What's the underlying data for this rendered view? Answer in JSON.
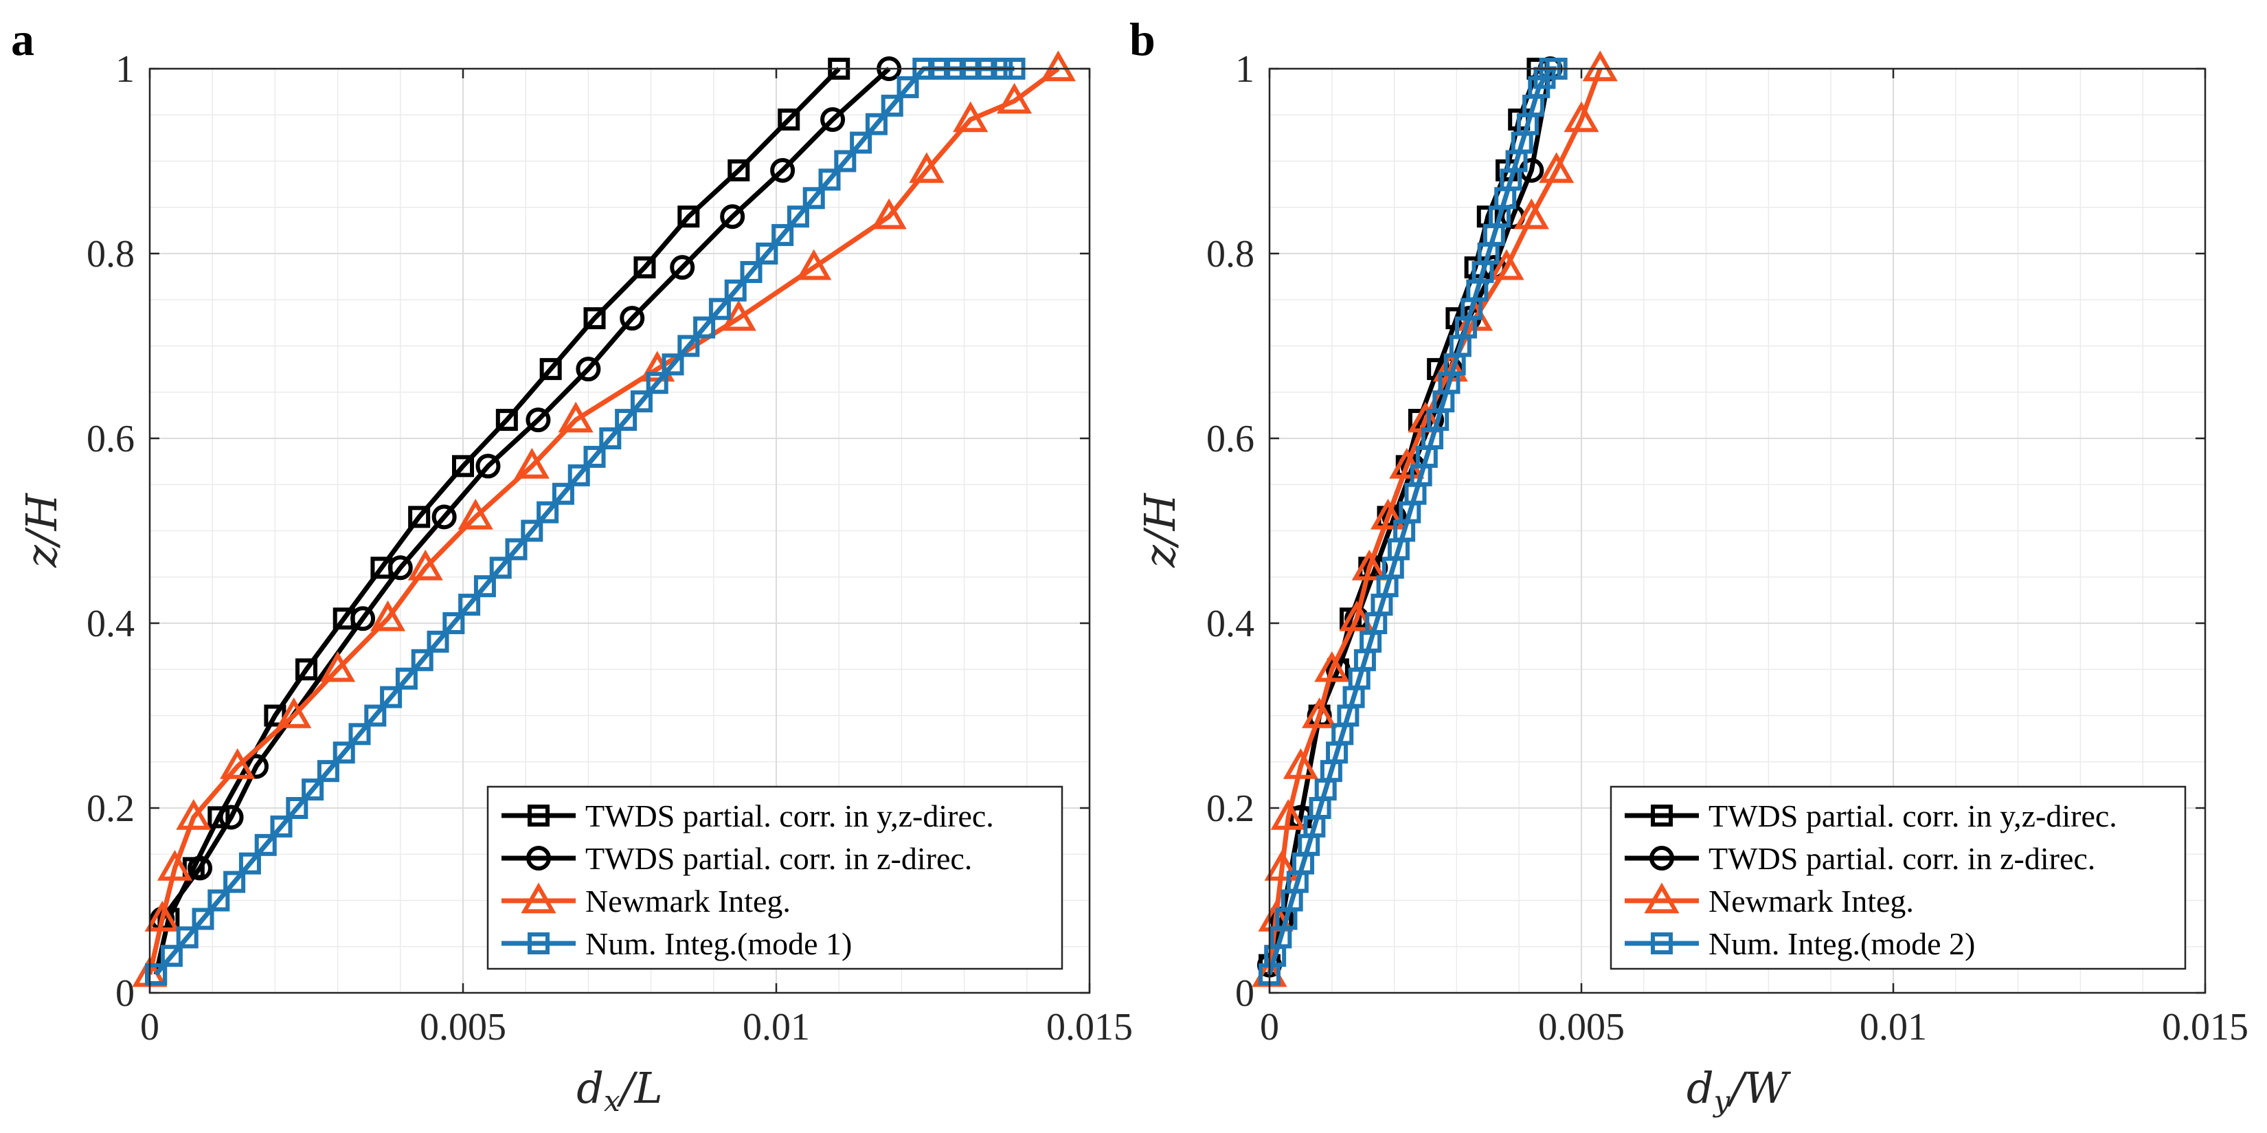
{
  "chart_data": [
    {
      "type": "line",
      "panel_label": "a",
      "xlabel_main": "d",
      "xlabel_sub": "x",
      "xlabel_den": "/L",
      "ylabel": "z/H",
      "xlim": [
        0,
        0.015
      ],
      "ylim": [
        0,
        1
      ],
      "xticks": [
        0,
        0.005,
        0.01,
        0.015
      ],
      "xtick_labels": [
        "0",
        "0.005",
        "0.01",
        "0.015"
      ],
      "yticks": [
        0,
        0.2,
        0.4,
        0.6,
        0.8,
        1
      ],
      "ytick_labels": [
        "0",
        "0.2",
        "0.4",
        "0.6",
        "0.8",
        "1"
      ],
      "grid": true,
      "legend_position": "bottom-right",
      "series": [
        {
          "name": "TWDS partial. corr. in y,z-direc.",
          "color": "#000000",
          "marker": "square",
          "x": [
            0.0001,
            0.0003,
            0.0007,
            0.0011,
            0.002,
            0.0025,
            0.0031,
            0.0037,
            0.0043,
            0.005,
            0.0057,
            0.0064,
            0.0071,
            0.0079,
            0.0086,
            0.0094,
            0.0102,
            0.011
          ],
          "y": [
            0.02,
            0.08,
            0.135,
            0.19,
            0.3,
            0.35,
            0.405,
            0.46,
            0.515,
            0.57,
            0.62,
            0.675,
            0.73,
            0.785,
            0.84,
            0.89,
            0.945,
            1.0
          ]
        },
        {
          "name": "TWDS partial. corr. in z-direc.",
          "color": "#000000",
          "marker": "circle",
          "x": [
            0.0002,
            0.0008,
            0.0013,
            0.0017,
            0.0034,
            0.004,
            0.0047,
            0.0054,
            0.0062,
            0.007,
            0.0077,
            0.0085,
            0.0093,
            0.0101,
            0.0109,
            0.0118
          ],
          "y": [
            0.08,
            0.135,
            0.19,
            0.245,
            0.405,
            0.46,
            0.515,
            0.57,
            0.62,
            0.675,
            0.73,
            0.785,
            0.84,
            0.89,
            0.945,
            1.0
          ]
        },
        {
          "name": "Newmark Integ.",
          "color": "#f4511e",
          "marker": "triangle",
          "x": [
            0.0,
            0.0002,
            0.0004,
            0.0007,
            0.0014,
            0.0023,
            0.003,
            0.0038,
            0.0044,
            0.0052,
            0.0061,
            0.0068,
            0.0081,
            0.0094,
            0.0106,
            0.0118,
            0.0124,
            0.0131,
            0.0138,
            0.0145
          ],
          "y": [
            0.02,
            0.08,
            0.135,
            0.19,
            0.245,
            0.3,
            0.35,
            0.405,
            0.46,
            0.515,
            0.57,
            0.62,
            0.675,
            0.73,
            0.785,
            0.84,
            0.89,
            0.945,
            0.965,
            1.0
          ]
        },
        {
          "name": "Num. Integ.(mode 1)",
          "color": "#1f77b4",
          "marker": "square",
          "x": [
            0.0001,
            0.00035,
            0.0006,
            0.00085,
            0.0011,
            0.00135,
            0.0016,
            0.00185,
            0.0021,
            0.00235,
            0.0026,
            0.00285,
            0.0031,
            0.00335,
            0.0036,
            0.00385,
            0.0041,
            0.00435,
            0.0046,
            0.00485,
            0.0051,
            0.00535,
            0.0056,
            0.00585,
            0.0061,
            0.00635,
            0.0066,
            0.00685,
            0.0071,
            0.00735,
            0.0076,
            0.00785,
            0.0081,
            0.00835,
            0.0086,
            0.00885,
            0.0091,
            0.00935,
            0.0096,
            0.00985,
            0.0101,
            0.01035,
            0.0106,
            0.01085,
            0.0111,
            0.01135,
            0.0116,
            0.01185,
            0.0121,
            0.01235,
            0.0126,
            0.01285,
            0.0131,
            0.01335,
            0.0136,
            0.0138
          ],
          "y": [
            0.02,
            0.04,
            0.06,
            0.08,
            0.1,
            0.12,
            0.14,
            0.16,
            0.18,
            0.2,
            0.22,
            0.24,
            0.26,
            0.28,
            0.3,
            0.32,
            0.34,
            0.36,
            0.38,
            0.4,
            0.42,
            0.44,
            0.46,
            0.48,
            0.5,
            0.52,
            0.54,
            0.56,
            0.58,
            0.6,
            0.62,
            0.64,
            0.66,
            0.68,
            0.7,
            0.72,
            0.74,
            0.76,
            0.78,
            0.8,
            0.82,
            0.84,
            0.86,
            0.88,
            0.9,
            0.92,
            0.94,
            0.96,
            0.98,
            1.0,
            1.0,
            1.0,
            1.0,
            1.0,
            1.0,
            1.0
          ]
        }
      ]
    },
    {
      "type": "line",
      "panel_label": "b",
      "xlabel_main": "d",
      "xlabel_sub": "y",
      "xlabel_den": "/W",
      "ylabel": "z/H",
      "xlim": [
        0,
        0.015
      ],
      "ylim": [
        0,
        1
      ],
      "xticks": [
        0,
        0.005,
        0.01,
        0.015
      ],
      "xtick_labels": [
        "0",
        "0.005",
        "0.01",
        "0.015"
      ],
      "yticks": [
        0,
        0.2,
        0.4,
        0.6,
        0.8,
        1
      ],
      "ytick_labels": [
        "0",
        "0.2",
        "0.4",
        "0.6",
        "0.8",
        "1"
      ],
      "grid": true,
      "legend_position": "bottom-right",
      "series": [
        {
          "name": "TWDS partial. corr. in y,z-direc.",
          "color": "#000000",
          "marker": "square",
          "x": [
            0.0,
            0.0002,
            0.0005,
            0.0008,
            0.0011,
            0.0013,
            0.0016,
            0.0019,
            0.0022,
            0.0024,
            0.0027,
            0.003,
            0.0033,
            0.0035,
            0.0038,
            0.004,
            0.0043
          ],
          "y": [
            0.03,
            0.08,
            0.19,
            0.3,
            0.35,
            0.405,
            0.46,
            0.515,
            0.57,
            0.62,
            0.675,
            0.73,
            0.785,
            0.84,
            0.89,
            0.945,
            1.0
          ]
        },
        {
          "name": "TWDS partial. corr. in z-direc.",
          "color": "#000000",
          "marker": "circle",
          "x": [
            0.0,
            0.0002,
            0.0005,
            0.0008,
            0.0011,
            0.0014,
            0.0017,
            0.002,
            0.0023,
            0.0026,
            0.0029,
            0.0032,
            0.0036,
            0.0039,
            0.0042,
            0.0045
          ],
          "y": [
            0.03,
            0.08,
            0.19,
            0.3,
            0.35,
            0.405,
            0.46,
            0.515,
            0.57,
            0.62,
            0.675,
            0.73,
            0.785,
            0.84,
            0.89,
            1.0
          ]
        },
        {
          "name": "Newmark Integ.",
          "color": "#f4511e",
          "marker": "triangle",
          "x": [
            0.0,
            0.0001,
            0.0002,
            0.0003,
            0.0005,
            0.0008,
            0.001,
            0.0014,
            0.0016,
            0.0019,
            0.0022,
            0.0025,
            0.0029,
            0.0033,
            0.0038,
            0.0042,
            0.0046,
            0.005,
            0.0053
          ],
          "y": [
            0.02,
            0.08,
            0.135,
            0.19,
            0.245,
            0.3,
            0.35,
            0.405,
            0.46,
            0.515,
            0.57,
            0.62,
            0.675,
            0.73,
            0.785,
            0.84,
            0.89,
            0.945,
            1.0
          ]
        },
        {
          "name": "Num. Integ.(mode 2)",
          "color": "#1f77b4",
          "marker": "square",
          "x": [
            0.0,
            9e-05,
            0.00018,
            0.00027,
            0.00036,
            0.00045,
            0.00054,
            0.00063,
            0.00072,
            0.00081,
            0.0009,
            0.00099,
            0.00108,
            0.00117,
            0.00126,
            0.00135,
            0.00144,
            0.00153,
            0.00162,
            0.00171,
            0.0018,
            0.00189,
            0.00198,
            0.00207,
            0.00216,
            0.00225,
            0.00234,
            0.00243,
            0.00252,
            0.00261,
            0.0027,
            0.00279,
            0.00288,
            0.00297,
            0.00306,
            0.00315,
            0.00324,
            0.00333,
            0.00342,
            0.00351,
            0.0036,
            0.00369,
            0.00378,
            0.00387,
            0.00396,
            0.00405,
            0.00414,
            0.00423,
            0.00432,
            0.00441,
            0.0045,
            0.0046
          ],
          "y": [
            0.02,
            0.04,
            0.06,
            0.08,
            0.1,
            0.12,
            0.14,
            0.16,
            0.18,
            0.2,
            0.22,
            0.24,
            0.26,
            0.28,
            0.3,
            0.32,
            0.34,
            0.36,
            0.38,
            0.4,
            0.42,
            0.44,
            0.46,
            0.48,
            0.5,
            0.52,
            0.54,
            0.56,
            0.58,
            0.6,
            0.62,
            0.64,
            0.66,
            0.68,
            0.7,
            0.72,
            0.74,
            0.76,
            0.78,
            0.8,
            0.82,
            0.84,
            0.86,
            0.88,
            0.9,
            0.92,
            0.94,
            0.96,
            0.98,
            0.99,
            1.0,
            1.0
          ]
        }
      ]
    }
  ]
}
